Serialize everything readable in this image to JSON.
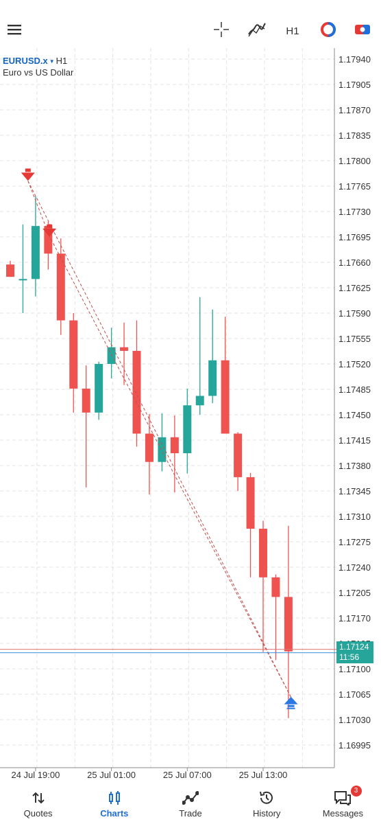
{
  "toolbar": {
    "menu_icon": "hamburger-menu-icon",
    "crosshair_icon": "crosshair-icon",
    "indicators_icon": "indicators-icon",
    "timeframe": "H1",
    "objects_icon": "objects-icon",
    "account_icon": "account-icon"
  },
  "symbol": {
    "name": "EURUSD.x",
    "timeframe": "H1",
    "description": "Euro vs US Dollar"
  },
  "chart_data": {
    "type": "candlestick",
    "symbol": "EURUSD.x",
    "timeframe": "H1",
    "ylim": [
      1.16975,
      1.17955
    ],
    "y_ticks": [
      "1.17940",
      "1.17905",
      "1.17870",
      "1.17835",
      "1.17800",
      "1.17765",
      "1.17730",
      "1.17695",
      "1.17660",
      "1.17625",
      "1.17590",
      "1.17555",
      "1.17520",
      "1.17485",
      "1.17450",
      "1.17415",
      "1.17380",
      "1.17345",
      "1.17310",
      "1.17275",
      "1.17240",
      "1.17205",
      "1.17170",
      "1.17135",
      "1.17100",
      "1.17065",
      "1.17030",
      "1.16995"
    ],
    "x_labels": [
      {
        "label": "24 Jul 19:00",
        "candle": 2
      },
      {
        "label": "25 Jul 01:00",
        "candle": 8
      },
      {
        "label": "25 Jul 07:00",
        "candle": 14
      },
      {
        "label": "25 Jul 13:00",
        "candle": 20
      }
    ],
    "candles": [
      {
        "o": 1.17657,
        "h": 1.17662,
        "l": 1.1764,
        "c": 1.1764
      },
      {
        "o": 1.17637,
        "h": 1.17712,
        "l": 1.1759,
        "c": 1.17637
      },
      {
        "o": 1.17637,
        "h": 1.17751,
        "l": 1.17613,
        "c": 1.1771
      },
      {
        "o": 1.1771,
        "h": 1.17716,
        "l": 1.1765,
        "c": 1.17672
      },
      {
        "o": 1.17672,
        "h": 1.17693,
        "l": 1.1756,
        "c": 1.1758
      },
      {
        "o": 1.1758,
        "h": 1.1759,
        "l": 1.17453,
        "c": 1.17486
      },
      {
        "o": 1.17486,
        "h": 1.17518,
        "l": 1.1735,
        "c": 1.17453
      },
      {
        "o": 1.17453,
        "h": 1.17523,
        "l": 1.17443,
        "c": 1.1752
      },
      {
        "o": 1.1752,
        "h": 1.1757,
        "l": 1.175,
        "c": 1.17543
      },
      {
        "o": 1.17543,
        "h": 1.17577,
        "l": 1.17491,
        "c": 1.17538
      },
      {
        "o": 1.17538,
        "h": 1.1758,
        "l": 1.17406,
        "c": 1.17424
      },
      {
        "o": 1.17424,
        "h": 1.17451,
        "l": 1.1734,
        "c": 1.17385
      },
      {
        "o": 1.17385,
        "h": 1.17452,
        "l": 1.17372,
        "c": 1.17419
      },
      {
        "o": 1.17419,
        "h": 1.17449,
        "l": 1.17343,
        "c": 1.17397
      },
      {
        "o": 1.17397,
        "h": 1.17486,
        "l": 1.17369,
        "c": 1.17463
      },
      {
        "o": 1.17463,
        "h": 1.17612,
        "l": 1.1745,
        "c": 1.17476
      },
      {
        "o": 1.17476,
        "h": 1.17595,
        "l": 1.17466,
        "c": 1.17525
      },
      {
        "o": 1.17525,
        "h": 1.17585,
        "l": 1.17424,
        "c": 1.17424
      },
      {
        "o": 1.17424,
        "h": 1.17426,
        "l": 1.17345,
        "c": 1.17364
      },
      {
        "o": 1.17364,
        "h": 1.1737,
        "l": 1.17226,
        "c": 1.17293
      },
      {
        "o": 1.17293,
        "h": 1.17304,
        "l": 1.17123,
        "c": 1.17226
      },
      {
        "o": 1.17226,
        "h": 1.1723,
        "l": 1.17112,
        "c": 1.17199
      },
      {
        "o": 1.17199,
        "h": 1.17297,
        "l": 1.17032,
        "c": 1.17124
      }
    ],
    "current_price": "1.17124",
    "countdown": "11:56",
    "trade_line": [
      {
        "candle": 1.4,
        "price": 1.17772
      },
      {
        "candle": 3.1,
        "price": 1.17696
      },
      {
        "candle": 22.2,
        "price": 1.17061
      }
    ],
    "markers": [
      {
        "candle": 1.4,
        "price": 1.17775,
        "type": "sell",
        "color": "#e53935"
      },
      {
        "candle": 3.1,
        "price": 1.17698,
        "type": "sell",
        "color": "#e53935"
      },
      {
        "candle": 22.2,
        "price": 1.17053,
        "type": "buy",
        "color": "#2a78e4"
      }
    ],
    "colors": {
      "bull": "#26a69a",
      "bear": "#ef5350",
      "line_bid": "#3a8fd8",
      "line_ask": "#e57373",
      "trade_line": "#c0504d"
    }
  },
  "nav": {
    "quotes": "Quotes",
    "charts": "Charts",
    "trade": "Trade",
    "history": "History",
    "messages": "Messages",
    "messages_badge": "3"
  },
  "colors": {
    "accent": "#1e6fd9",
    "badge": "#e53935"
  }
}
